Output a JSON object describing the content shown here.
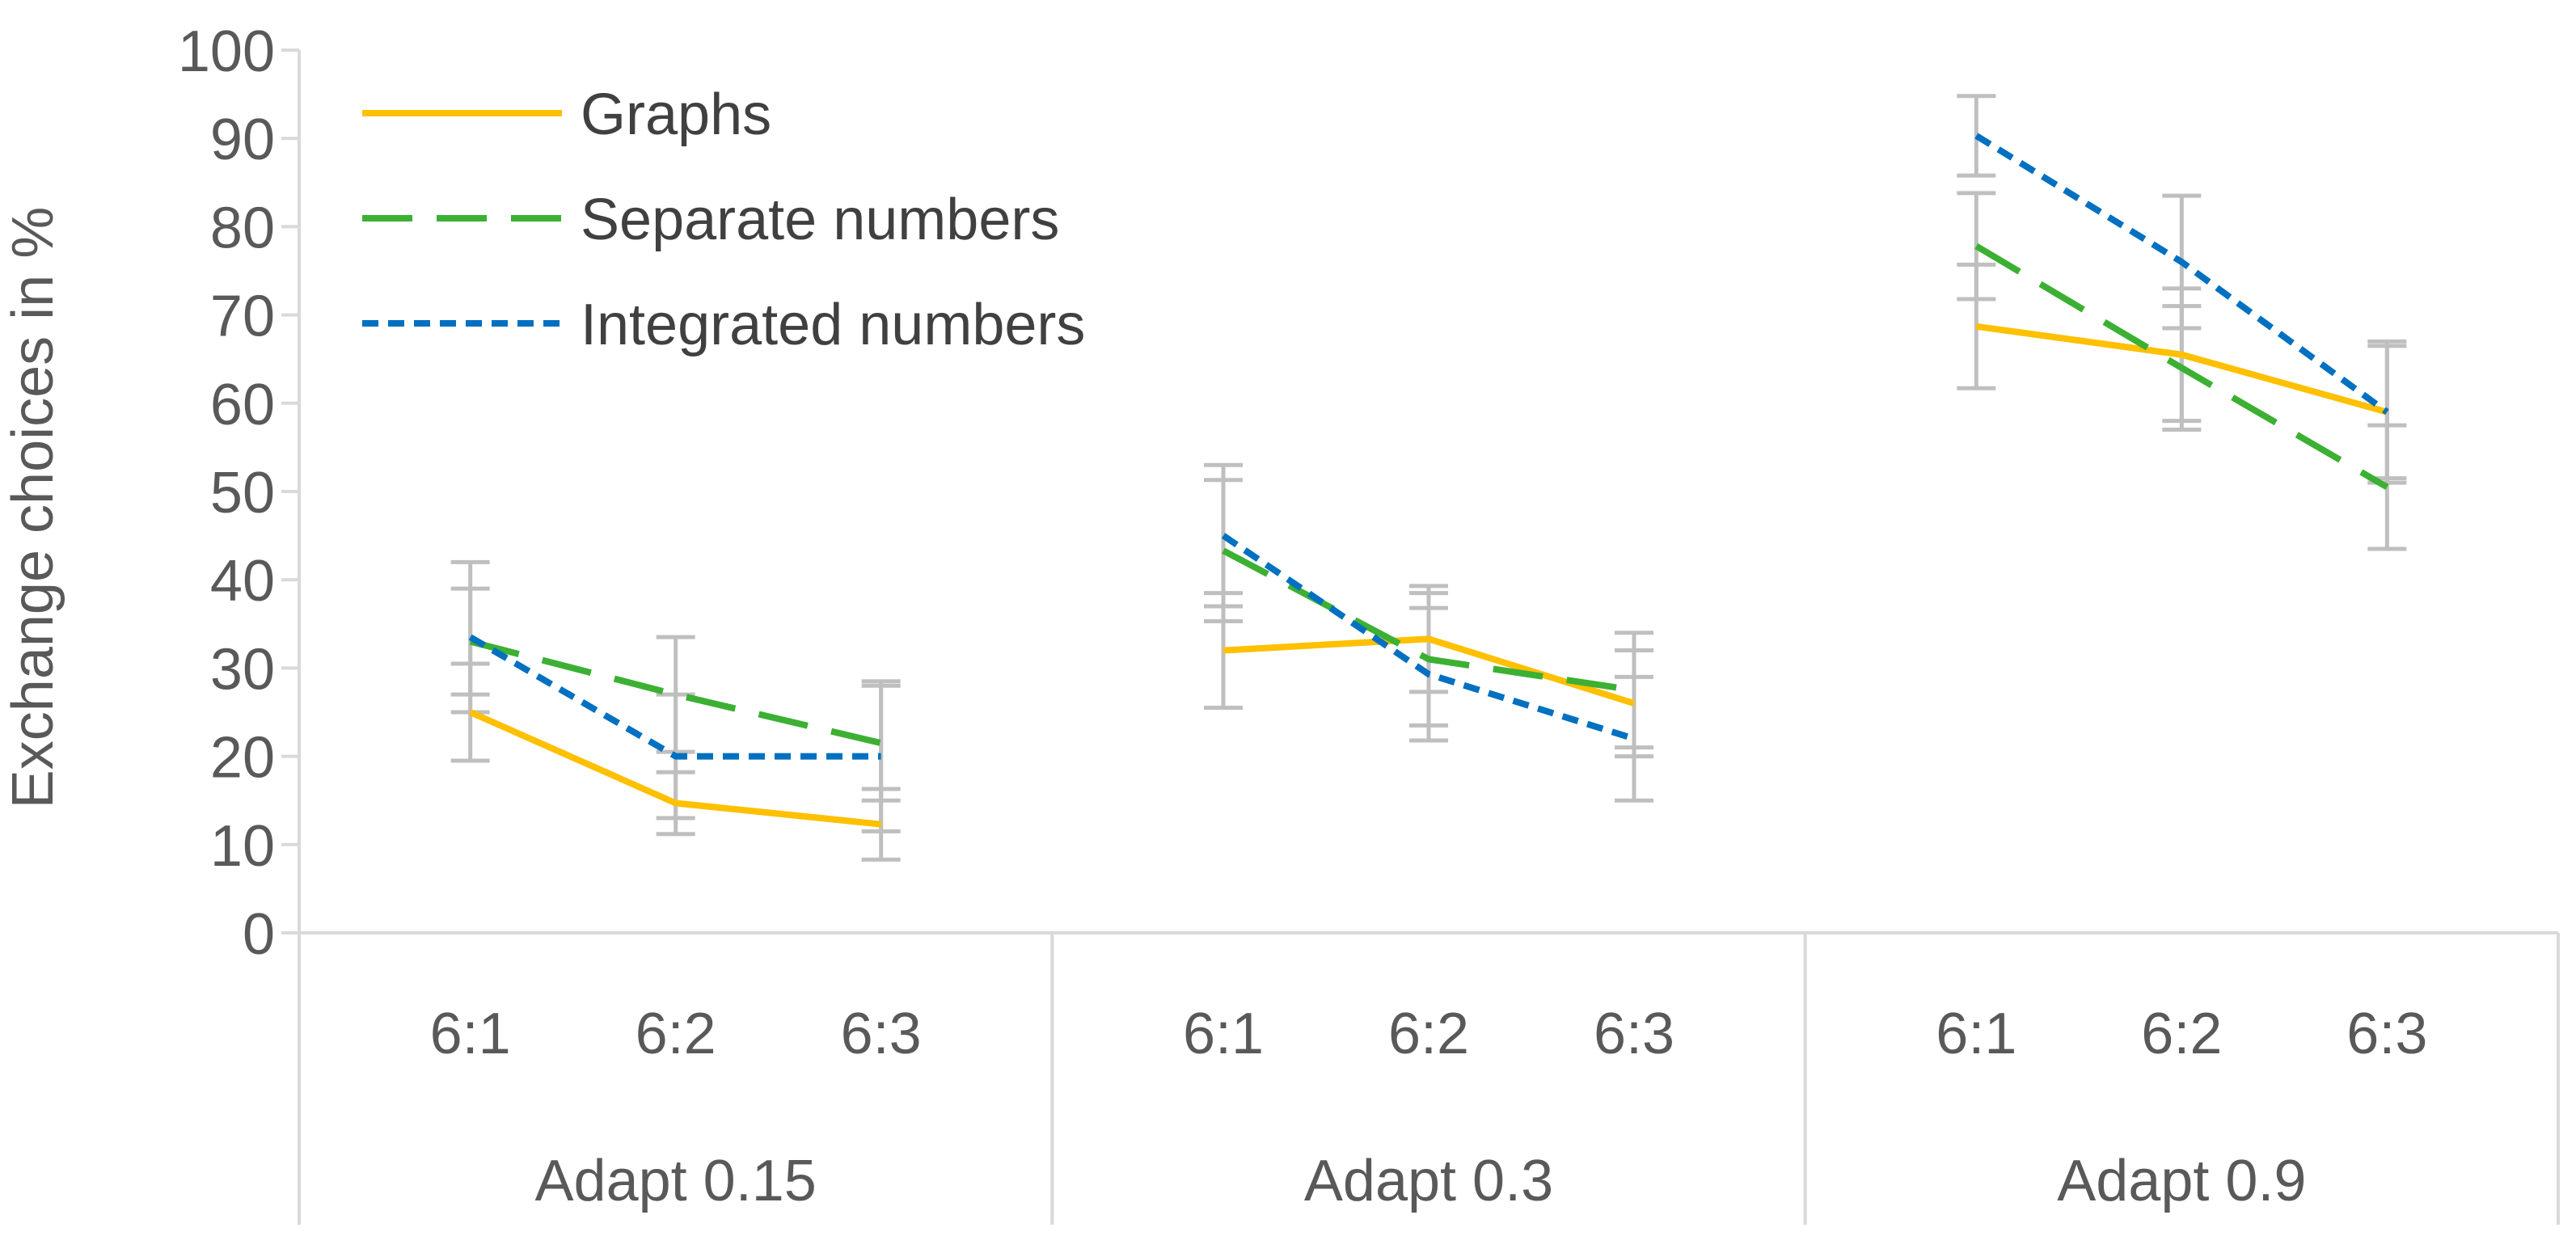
{
  "chart_data": {
    "type": "line",
    "title": "",
    "ylabel": "Exchange choices in %",
    "xlabel": "",
    "ylim": [
      0,
      100
    ],
    "yticks": [
      0,
      10,
      20,
      30,
      40,
      50,
      60,
      70,
      80,
      90,
      100
    ],
    "grid": false,
    "legend_position": "top-left",
    "groups": [
      {
        "label": "Adapt 0.15",
        "categories": [
          "6:1",
          "6:2",
          "6:3"
        ]
      },
      {
        "label": "Adapt 0.3",
        "categories": [
          "6:1",
          "6:2",
          "6:3"
        ]
      },
      {
        "label": "Adapt 0.9",
        "categories": [
          "6:1",
          "6:2",
          "6:3"
        ]
      }
    ],
    "series": [
      {
        "name": "Graphs",
        "style": "solid",
        "color": "#FFC000",
        "values": [
          [
            25,
            14.7,
            12.3
          ],
          [
            32,
            33.3,
            26
          ],
          [
            68.7,
            65.5,
            59
          ]
        ],
        "errors": [
          [
            5.5,
            3.5,
            4
          ],
          [
            6.5,
            6,
            6
          ],
          [
            7,
            7.5,
            8
          ]
        ]
      },
      {
        "name": "Separate numbers",
        "style": "dashed",
        "color": "#3CB033",
        "values": [
          [
            33,
            27,
            21.5
          ],
          [
            43.3,
            31,
            27.5
          ],
          [
            77.8,
            64,
            50.5
          ]
        ],
        "errors": [
          [
            6,
            6.5,
            6.5
          ],
          [
            8,
            7.5,
            6.5
          ],
          [
            6,
            7,
            7
          ]
        ]
      },
      {
        "name": "Integrated numbers",
        "style": "dotted",
        "color": "#0070C0",
        "values": [
          [
            33.5,
            20,
            20
          ],
          [
            45,
            29.3,
            22
          ],
          [
            90.3,
            76,
            59
          ]
        ],
        "errors": [
          [
            8.5,
            7,
            8.5
          ],
          [
            8,
            7.5,
            7
          ],
          [
            4.5,
            7.5,
            7.5
          ]
        ]
      }
    ],
    "colors": {
      "axis": "#D9D9D9",
      "error_bar": "#BFBFBF",
      "text": "#595959"
    }
  }
}
